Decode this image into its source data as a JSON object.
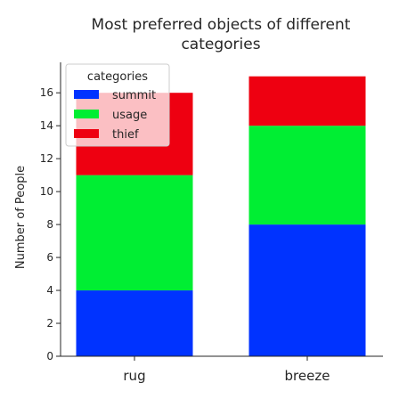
{
  "chart_data": {
    "type": "bar",
    "stacked": true,
    "title": "Most preferred objects of different categories",
    "xlabel": "",
    "ylabel": "Number of People",
    "categories": [
      "rug",
      "breeze"
    ],
    "series": [
      {
        "name": "summit",
        "values": [
          4,
          8
        ],
        "color": "#0033ff"
      },
      {
        "name": "usage",
        "values": [
          7,
          6
        ],
        "color": "#00ee33"
      },
      {
        "name": "thief",
        "values": [
          5,
          3
        ],
        "color": "#ee0011"
      }
    ],
    "ylim": [
      0,
      17.85
    ],
    "yticks": [
      0,
      2,
      4,
      6,
      8,
      10,
      12,
      14,
      16
    ],
    "grid": false,
    "legend": {
      "title": "categories",
      "placement": "top-left"
    }
  }
}
